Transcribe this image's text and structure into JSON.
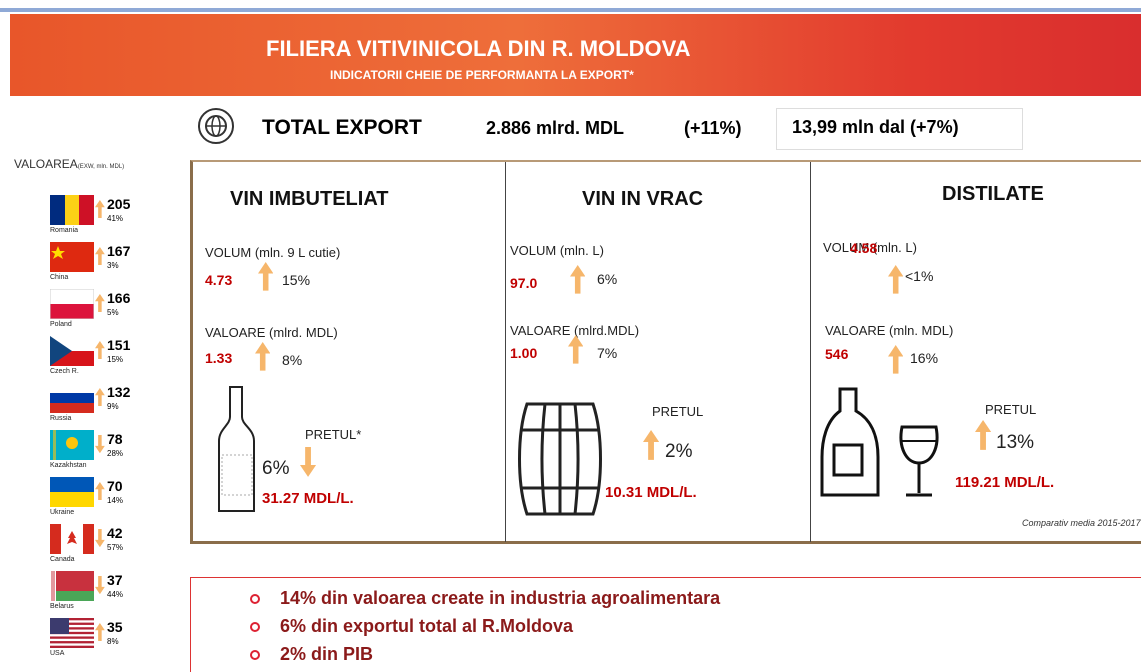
{
  "header": {
    "title": "FILIERA VITIVINICOLA DIN R. MOLDOVA",
    "subtitle": "INDICATORII CHEIE DE PERFORMANTA LA EXPORT*"
  },
  "total": {
    "label": "TOTAL EXPORT",
    "value": "2.886 mlrd. MDL",
    "change": "(+11%)",
    "volume": "13,99 mln dal (+7%)"
  },
  "countries": {
    "title": "VALOAREA",
    "unit": "(EXW, mln. MDL)",
    "items": [
      {
        "name": "Romania",
        "value": "205",
        "change": "41%"
      },
      {
        "name": "China",
        "value": "167",
        "change": "3%"
      },
      {
        "name": "Poland",
        "value": "166",
        "change": "5%"
      },
      {
        "name": "Czech R.",
        "value": "151",
        "change": "15%"
      },
      {
        "name": "Russia",
        "value": "132",
        "change": "9%"
      },
      {
        "name": "Kazakhstan",
        "value": "78",
        "change": "28%"
      },
      {
        "name": "Ukraine",
        "value": "70",
        "change": "14%"
      },
      {
        "name": "Canada",
        "value": "42",
        "change": "57%"
      },
      {
        "name": "Belarus",
        "value": "37",
        "change": "44%"
      },
      {
        "name": "USA",
        "value": "35",
        "change": "8%"
      }
    ]
  },
  "panels": [
    {
      "title": "VIN IMBUTELIAT",
      "volume_label": "VOLUM (mln. 9 L cutie)",
      "volume": "4.73",
      "volume_change": "15%",
      "value_label": "VALOARE (mlrd. MDL)",
      "value": "1.33",
      "value_change": "8%",
      "price_label": "PRETUL*",
      "price_change": "6%",
      "price": "31.27 MDL/L."
    },
    {
      "title": "VIN IN VRAC",
      "volume_label": "VOLUM (mln. L)",
      "volume": "97.0",
      "volume_change": "6%",
      "value_label": "VALOARE (mlrd.MDL)",
      "value": "1.00",
      "value_change": "7%",
      "price_label": "PRETUL",
      "price_change": "2%",
      "price": "10.31 MDL/L."
    },
    {
      "title": "DISTILATE",
      "volume_label": "VOLUM (mln. L)",
      "volume": "4.58",
      "volume_change": "<1%",
      "value_label": "VALOARE (mln. MDL)",
      "value": "546",
      "value_change": "16%",
      "price_label": "PRETUL",
      "price_change": "13%",
      "price": "119.21 MDL/L."
    }
  ],
  "note": "Comparativ media 2015-2017",
  "bullets": [
    "14% din valoarea create in industria agroalimentara",
    "6% din exportul total al R.Moldova",
    "2% din PIB"
  ]
}
